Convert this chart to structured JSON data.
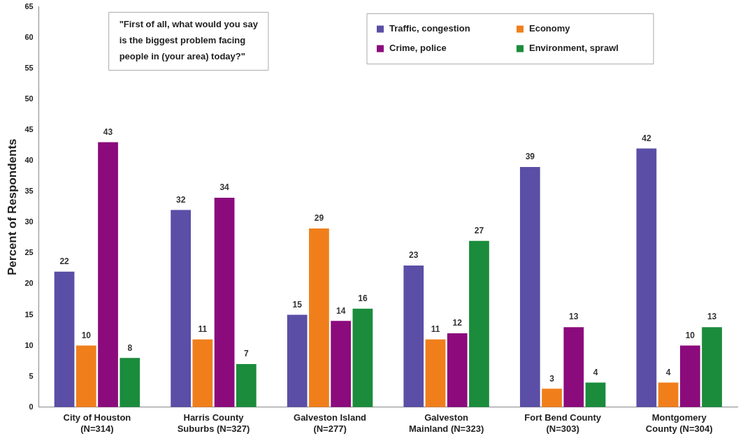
{
  "chart_data": {
    "type": "bar",
    "ylabel": "Percent of Respondents",
    "categories": [
      "City of Houston\n(N=314)",
      "Harris County\nSuburbs (N=327)",
      "Galveston Island\n(N=277)",
      "Galveston\nMainland (N=323)",
      "Fort Bend County\n(N=303)",
      "Montgomery\nCounty (N=304)"
    ],
    "series": [
      {
        "name": "Traffic, congestion",
        "color": "#5a4ea6",
        "values": [
          22,
          32,
          15,
          23,
          39,
          42
        ]
      },
      {
        "name": "Economy",
        "color": "#f07f1b",
        "values": [
          10,
          11,
          29,
          11,
          3,
          4
        ]
      },
      {
        "name": "Crime, police",
        "color": "#8b0a7c",
        "values": [
          43,
          34,
          14,
          12,
          13,
          10
        ]
      },
      {
        "name": "Environment, sprawl",
        "color": "#1a8c3c",
        "values": [
          8,
          7,
          16,
          27,
          4,
          13
        ]
      }
    ],
    "ylim": [
      0,
      65
    ],
    "yticks": [
      0,
      5,
      10,
      15,
      20,
      25,
      30,
      35,
      40,
      45,
      50,
      55,
      60,
      65
    ],
    "grid": false,
    "legend": "top right",
    "data_labels": true,
    "annotations": [
      "\"First of all, what would you say\nis the biggest problem facing\npeople in (your area) today?\""
    ]
  }
}
